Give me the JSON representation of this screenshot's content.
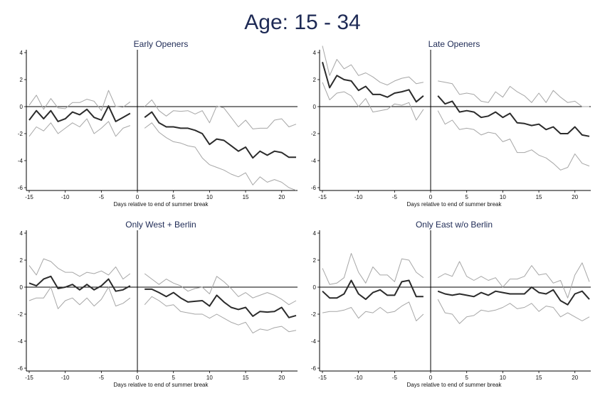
{
  "figure": {
    "title": "Age: 15 - 34"
  },
  "chart_data": [
    {
      "type": "line",
      "title": "Early Openers",
      "xlabel": "Days relative to end of summer break",
      "xlim": [
        -15,
        22
      ],
      "ylim": [
        -6,
        4
      ],
      "xticks": [
        -15,
        -10,
        -5,
        0,
        5,
        10,
        15,
        20
      ],
      "yticks": [
        -6,
        -4,
        -2,
        0,
        2,
        4
      ],
      "xtick_labels": [
        "-15",
        "-10",
        "-5",
        "0",
        "5",
        "10",
        "15",
        "20"
      ],
      "ytick_labels": [
        "-6",
        "-4",
        "-2",
        "0",
        "2",
        "4"
      ],
      "hline": 0,
      "vline": 0,
      "grid": false,
      "series": [
        {
          "role": "upper",
          "color": "#a6a6a6",
          "x": [
            -15,
            -14,
            -13,
            -12,
            -11,
            -10,
            -9,
            -8,
            -7,
            -6,
            -5,
            -4,
            -3,
            -2,
            -1,
            1,
            2,
            3,
            4,
            5,
            6,
            7,
            8,
            9,
            10,
            11,
            12,
            13,
            14,
            15,
            16,
            17,
            18,
            19,
            20,
            21,
            22
          ],
          "y": [
            0.1,
            0.85,
            -0.2,
            0.6,
            -0.1,
            -0.15,
            0.3,
            0.3,
            0.55,
            0.4,
            -0.3,
            1.2,
            0.0,
            -0.05,
            0.35,
            0.0,
            0.5,
            -0.3,
            -0.7,
            -0.3,
            -0.35,
            -0.3,
            -0.55,
            -0.3,
            -1.2,
            0.05,
            -0.1,
            -0.8,
            -1.5,
            -1.0,
            -1.65,
            -1.6,
            -1.6,
            -1.0,
            -0.9,
            -1.5,
            -1.3
          ]
        },
        {
          "role": "estimate",
          "color": "#2b2b2b",
          "x": [
            -15,
            -14,
            -13,
            -12,
            -11,
            -10,
            -9,
            -8,
            -7,
            -6,
            -5,
            -4,
            -3,
            -2,
            -1,
            1,
            2,
            3,
            4,
            5,
            6,
            7,
            8,
            9,
            10,
            11,
            12,
            13,
            14,
            15,
            16,
            17,
            18,
            19,
            20,
            21,
            22
          ],
          "y": [
            -1.0,
            -0.3,
            -0.9,
            -0.3,
            -1.1,
            -0.9,
            -0.4,
            -0.6,
            -0.2,
            -0.8,
            -1.0,
            0.05,
            -1.1,
            -0.8,
            -0.5,
            -0.8,
            -0.4,
            -1.2,
            -1.5,
            -1.5,
            -1.6,
            -1.6,
            -1.75,
            -2.0,
            -2.8,
            -2.4,
            -2.5,
            -2.9,
            -3.3,
            -3.0,
            -3.8,
            -3.3,
            -3.6,
            -3.3,
            -3.4,
            -3.75,
            -3.75
          ]
        },
        {
          "role": "lower",
          "color": "#a6a6a6",
          "x": [
            -15,
            -14,
            -13,
            -12,
            -11,
            -10,
            -9,
            -8,
            -7,
            -6,
            -5,
            -4,
            -3,
            -2,
            -1,
            1,
            2,
            3,
            4,
            5,
            6,
            7,
            8,
            9,
            10,
            11,
            12,
            13,
            14,
            15,
            16,
            17,
            18,
            19,
            20,
            21,
            22
          ],
          "y": [
            -2.2,
            -1.5,
            -1.8,
            -1.2,
            -2.0,
            -1.6,
            -1.2,
            -1.5,
            -0.9,
            -2.0,
            -1.6,
            -1.1,
            -2.2,
            -1.6,
            -1.4,
            -1.6,
            -1.2,
            -1.9,
            -2.3,
            -2.6,
            -2.7,
            -2.9,
            -3.0,
            -3.8,
            -4.3,
            -4.5,
            -4.7,
            -5.0,
            -5.2,
            -4.9,
            -5.8,
            -5.2,
            -5.6,
            -5.4,
            -5.6,
            -6.0,
            -6.2
          ]
        }
      ]
    },
    {
      "type": "line",
      "title": "Late Openers",
      "xlabel": "Days relative to end of summer break",
      "xlim": [
        -15,
        22
      ],
      "ylim": [
        -6,
        4
      ],
      "xticks": [
        -15,
        -10,
        -5,
        0,
        5,
        10,
        15,
        20
      ],
      "yticks": [
        -6,
        -4,
        -2,
        0,
        2,
        4
      ],
      "xtick_labels": [
        "-15",
        "-10",
        "-5",
        "0",
        "5",
        "10",
        "15",
        "20"
      ],
      "ytick_labels": [
        "-6",
        "-4",
        "-2",
        "0",
        "2",
        "4"
      ],
      "hline": 0,
      "vline": 0,
      "grid": false,
      "series": [
        {
          "role": "upper",
          "color": "#a6a6a6",
          "x": [
            -15,
            -14,
            -13,
            -12,
            -11,
            -10,
            -9,
            -8,
            -7,
            -6,
            -5,
            -4,
            -3,
            -2,
            -1,
            1,
            2,
            3,
            4,
            5,
            6,
            7,
            8,
            9,
            10,
            11,
            12,
            13,
            14,
            15,
            16,
            17,
            18,
            19,
            20,
            21,
            22
          ],
          "y": [
            4.5,
            2.3,
            3.5,
            2.8,
            3.1,
            2.3,
            2.5,
            2.2,
            1.8,
            1.6,
            1.9,
            2.1,
            2.2,
            1.7,
            1.8,
            1.9,
            1.8,
            1.7,
            0.9,
            1.0,
            0.9,
            0.4,
            0.3,
            1.1,
            0.7,
            1.5,
            1.1,
            0.8,
            0.3,
            1.0,
            0.3,
            1.2,
            0.7,
            0.3,
            0.4,
            0.0,
            0.0
          ]
        },
        {
          "role": "estimate",
          "color": "#2b2b2b",
          "x": [
            -15,
            -14,
            -13,
            -12,
            -11,
            -10,
            -9,
            -8,
            -7,
            -6,
            -5,
            -4,
            -3,
            -2,
            -1,
            1,
            2,
            3,
            4,
            5,
            6,
            7,
            8,
            9,
            10,
            11,
            12,
            13,
            14,
            15,
            16,
            17,
            18,
            19,
            20,
            21,
            22
          ],
          "y": [
            3.3,
            1.4,
            2.3,
            2.0,
            1.9,
            1.2,
            1.5,
            0.9,
            0.9,
            0.7,
            1.0,
            1.1,
            1.25,
            0.35,
            0.8,
            0.8,
            0.2,
            0.4,
            -0.4,
            -0.3,
            -0.4,
            -0.8,
            -0.7,
            -0.4,
            -0.8,
            -0.5,
            -1.2,
            -1.25,
            -1.4,
            -1.3,
            -1.7,
            -1.5,
            -2.0,
            -2.0,
            -1.5,
            -2.1,
            -2.2
          ]
        },
        {
          "role": "lower",
          "color": "#a6a6a6",
          "x": [
            -15,
            -14,
            -13,
            -12,
            -11,
            -10,
            -9,
            -8,
            -7,
            -6,
            -5,
            -4,
            -3,
            -2,
            -1,
            1,
            2,
            3,
            4,
            5,
            6,
            7,
            8,
            9,
            10,
            11,
            12,
            13,
            14,
            15,
            16,
            17,
            18,
            19,
            20,
            21,
            22
          ],
          "y": [
            1.8,
            0.5,
            1.0,
            1.1,
            0.8,
            0.0,
            0.6,
            -0.4,
            -0.3,
            -0.2,
            0.2,
            0.1,
            0.3,
            -1.0,
            -0.2,
            -0.3,
            -1.3,
            -1.0,
            -1.7,
            -1.6,
            -1.7,
            -2.1,
            -1.9,
            -2.0,
            -2.6,
            -2.4,
            -3.4,
            -3.4,
            -3.2,
            -3.6,
            -3.8,
            -4.2,
            -4.7,
            -4.5,
            -3.5,
            -4.2,
            -4.4
          ]
        }
      ]
    },
    {
      "type": "line",
      "title": "Only West + Berlin",
      "xlabel": "Days relative to end of summer break",
      "xlim": [
        -15,
        22
      ],
      "ylim": [
        -6,
        4
      ],
      "xticks": [
        -15,
        -10,
        -5,
        0,
        5,
        10,
        15,
        20
      ],
      "yticks": [
        -6,
        -4,
        -2,
        0,
        2,
        4
      ],
      "xtick_labels": [
        "-15",
        "-10",
        "-5",
        "0",
        "5",
        "10",
        "15",
        "20"
      ],
      "ytick_labels": [
        "-6",
        "-4",
        "-2",
        "0",
        "2",
        "4"
      ],
      "hline": 0,
      "vline": 0,
      "grid": false,
      "series": [
        {
          "role": "upper",
          "color": "#a6a6a6",
          "x": [
            -15,
            -14,
            -13,
            -12,
            -11,
            -10,
            -9,
            -8,
            -7,
            -6,
            -5,
            -4,
            -3,
            -2,
            -1,
            1,
            2,
            3,
            4,
            5,
            6,
            7,
            8,
            9,
            10,
            11,
            12,
            13,
            14,
            15,
            16,
            17,
            18,
            19,
            20,
            21,
            22
          ],
          "y": [
            1.6,
            0.9,
            2.1,
            1.9,
            1.4,
            1.1,
            1.1,
            0.8,
            1.1,
            1.0,
            1.2,
            0.9,
            1.5,
            0.6,
            1.0,
            1.0,
            0.6,
            0.2,
            0.6,
            0.3,
            0.1,
            -0.3,
            -0.1,
            0.0,
            -0.5,
            0.8,
            0.4,
            -0.1,
            -0.7,
            -0.4,
            -0.8,
            -0.6,
            -0.4,
            -0.6,
            -0.9,
            -1.3,
            -1.0
          ]
        },
        {
          "role": "estimate",
          "color": "#2b2b2b",
          "x": [
            -15,
            -14,
            -13,
            -12,
            -11,
            -10,
            -9,
            -8,
            -7,
            -6,
            -5,
            -4,
            -3,
            -2,
            -1,
            1,
            2,
            3,
            4,
            5,
            6,
            7,
            8,
            9,
            10,
            11,
            12,
            13,
            14,
            15,
            16,
            17,
            18,
            19,
            20,
            21,
            22
          ],
          "y": [
            0.3,
            0.1,
            0.6,
            0.8,
            -0.1,
            0.0,
            0.2,
            -0.2,
            0.2,
            -0.2,
            0.1,
            0.6,
            -0.3,
            -0.2,
            0.1,
            -0.15,
            -0.15,
            -0.4,
            -0.7,
            -0.4,
            -0.8,
            -1.1,
            -1.05,
            -1.0,
            -1.4,
            -0.6,
            -1.1,
            -1.5,
            -1.65,
            -1.5,
            -2.15,
            -1.8,
            -1.85,
            -1.8,
            -1.5,
            -2.25,
            -2.1
          ]
        },
        {
          "role": "lower",
          "color": "#a6a6a6",
          "x": [
            -15,
            -14,
            -13,
            -12,
            -11,
            -10,
            -9,
            -8,
            -7,
            -6,
            -5,
            -4,
            -3,
            -2,
            -1,
            1,
            2,
            3,
            4,
            5,
            6,
            7,
            8,
            9,
            10,
            11,
            12,
            13,
            14,
            15,
            16,
            17,
            18,
            19,
            20,
            21,
            22
          ],
          "y": [
            -1.0,
            -0.8,
            -0.8,
            0.0,
            -1.6,
            -1.0,
            -0.8,
            -1.3,
            -0.8,
            -1.4,
            -0.9,
            0.0,
            -1.4,
            -1.2,
            -0.8,
            -1.3,
            -0.7,
            -1.0,
            -1.4,
            -1.3,
            -1.8,
            -1.9,
            -2.0,
            -2.0,
            -2.3,
            -2.0,
            -2.3,
            -2.6,
            -2.8,
            -2.6,
            -3.4,
            -3.1,
            -3.2,
            -3.0,
            -2.9,
            -3.3,
            -3.2
          ]
        }
      ]
    },
    {
      "type": "line",
      "title": "Only East w/o Berlin",
      "xlabel": "Days relative to end of summer break",
      "xlim": [
        -15,
        22
      ],
      "ylim": [
        -6,
        4
      ],
      "xticks": [
        -15,
        -10,
        -5,
        0,
        5,
        10,
        15,
        20
      ],
      "yticks": [
        -6,
        -4,
        -2,
        0,
        2,
        4
      ],
      "xtick_labels": [
        "-15",
        "-10",
        "-5",
        "0",
        "5",
        "10",
        "15",
        "20"
      ],
      "ytick_labels": [
        "-6",
        "-4",
        "-2",
        "0",
        "2",
        "4"
      ],
      "hline": 0,
      "vline": 0,
      "grid": false,
      "series": [
        {
          "role": "upper",
          "color": "#a6a6a6",
          "x": [
            -15,
            -14,
            -13,
            -12,
            -11,
            -10,
            -9,
            -8,
            -7,
            -6,
            -5,
            -4,
            -3,
            -2,
            -1,
            1,
            2,
            3,
            4,
            5,
            6,
            7,
            8,
            9,
            10,
            11,
            12,
            13,
            14,
            15,
            16,
            17,
            18,
            19,
            20,
            21,
            22
          ],
          "y": [
            1.4,
            0.2,
            0.3,
            0.7,
            2.5,
            1.1,
            0.3,
            1.5,
            0.9,
            0.9,
            0.4,
            2.1,
            2.0,
            1.1,
            0.7,
            0.7,
            1.0,
            0.8,
            1.9,
            0.8,
            0.5,
            0.8,
            0.5,
            0.7,
            0.0,
            0.6,
            0.6,
            0.8,
            1.6,
            0.9,
            1.0,
            0.3,
            0.5,
            -0.8,
            0.9,
            1.8,
            0.4
          ]
        },
        {
          "role": "estimate",
          "color": "#2b2b2b",
          "x": [
            -15,
            -14,
            -13,
            -12,
            -11,
            -10,
            -9,
            -8,
            -7,
            -6,
            -5,
            -4,
            -3,
            -2,
            -1,
            1,
            2,
            3,
            4,
            5,
            6,
            7,
            8,
            9,
            10,
            11,
            12,
            13,
            14,
            15,
            16,
            17,
            18,
            19,
            20,
            21,
            22
          ],
          "y": [
            -0.3,
            -0.8,
            -0.8,
            -0.5,
            0.5,
            -0.5,
            -0.9,
            -0.4,
            -0.2,
            -0.6,
            -0.6,
            0.4,
            0.5,
            -0.7,
            -0.7,
            -0.3,
            -0.5,
            -0.6,
            -0.5,
            -0.6,
            -0.7,
            -0.4,
            -0.6,
            -0.3,
            -0.4,
            -0.5,
            -0.5,
            -0.5,
            0.0,
            -0.4,
            -0.5,
            -0.2,
            -1.0,
            -1.3,
            -0.5,
            -0.3,
            -0.9
          ]
        },
        {
          "role": "lower",
          "color": "#a6a6a6",
          "x": [
            -15,
            -14,
            -13,
            -12,
            -11,
            -10,
            -9,
            -8,
            -7,
            -6,
            -5,
            -4,
            -3,
            -2,
            -1,
            1,
            2,
            3,
            4,
            5,
            6,
            7,
            8,
            9,
            10,
            11,
            12,
            13,
            14,
            15,
            16,
            17,
            18,
            19,
            20,
            21,
            22
          ],
          "y": [
            -1.9,
            -1.8,
            -1.8,
            -1.7,
            -1.5,
            -2.3,
            -1.8,
            -1.9,
            -1.5,
            -1.9,
            -1.8,
            -1.4,
            -1.1,
            -2.5,
            -2.0,
            -0.9,
            -1.9,
            -2.0,
            -2.7,
            -2.2,
            -2.1,
            -1.7,
            -1.8,
            -1.7,
            -1.5,
            -1.2,
            -1.6,
            -1.5,
            -1.2,
            -1.8,
            -1.4,
            -1.5,
            -2.2,
            -1.9,
            -2.2,
            -2.5,
            -2.2
          ]
        }
      ]
    }
  ]
}
